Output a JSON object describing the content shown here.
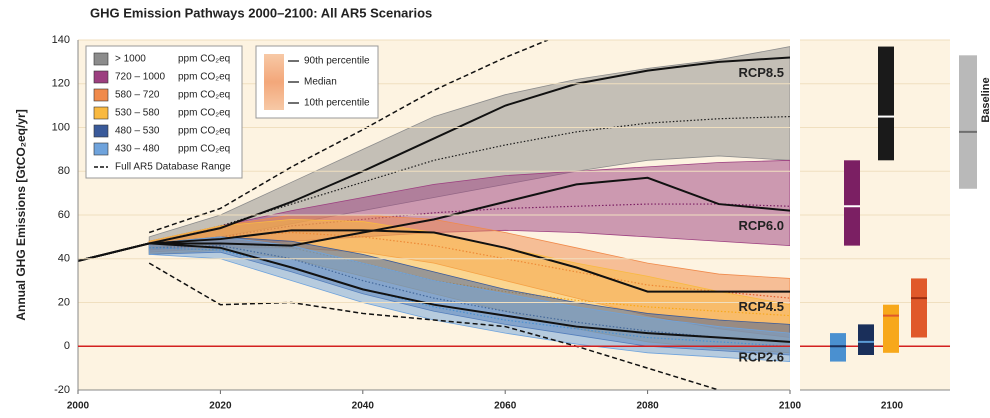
{
  "chart_data": {
    "type": "band",
    "title": "GHG Emission Pathways 2000–2100: All AR5 Scenarios",
    "y_label": "Annual GHG Emissions [GtCO₂eq/yr]",
    "xlim": [
      2000,
      2100
    ],
    "ylim": [
      -20,
      140
    ],
    "xticks": [
      2000,
      2020,
      2040,
      2060,
      2080,
      2100
    ],
    "yticks": [
      -20,
      0,
      20,
      40,
      60,
      80,
      100,
      120,
      140
    ],
    "grid": true,
    "x": [
      2010,
      2020,
      2030,
      2040,
      2050,
      2060,
      2070,
      2080,
      2090,
      2100
    ],
    "series": [
      {
        "name": "> 1000",
        "unit": "ppm CO₂eq",
        "color": "#8c8c8c",
        "box_color": "#1a1a1a",
        "box_median_color": "#ffffff",
        "upper": [
          50,
          60,
          75,
          90,
          105,
          115,
          122,
          127,
          131,
          137
        ],
        "values": [
          47,
          55,
          65,
          75,
          85,
          92,
          98,
          102,
          104,
          105
        ],
        "lower": [
          44,
          50,
          56,
          62,
          68,
          74,
          80,
          85,
          87,
          85
        ]
      },
      {
        "name": "720 – 1000",
        "unit": "ppm CO₂eq",
        "color": "#9c3f80",
        "box_color": "#7b1f63",
        "box_median_color": "#ffffff",
        "upper": [
          48,
          55,
          62,
          68,
          74,
          78,
          80,
          82,
          84,
          85
        ],
        "values": [
          46,
          50,
          55,
          58,
          61,
          63,
          64,
          65,
          65,
          64
        ],
        "lower": [
          44,
          46,
          48,
          50,
          52,
          53,
          52,
          50,
          48,
          46
        ]
      },
      {
        "name": "580 – 720",
        "unit": "ppm CO₂eq",
        "color": "#f08a4b",
        "box_color": "#e0592a",
        "box_median_color": "#9b2d10",
        "upper": [
          48,
          55,
          60,
          60,
          58,
          52,
          45,
          38,
          33,
          31
        ],
        "values": [
          46,
          50,
          52,
          50,
          46,
          40,
          34,
          28,
          25,
          22
        ],
        "lower": [
          43,
          45,
          45,
          43,
          38,
          30,
          22,
          14,
          8,
          4
        ]
      },
      {
        "name": "530 – 580",
        "unit": "ppm CO₂eq",
        "color": "#f9b940",
        "box_color": "#f7a81b",
        "box_median_color": "#e0592a",
        "upper": [
          48,
          55,
          58,
          57,
          52,
          45,
          38,
          32,
          25,
          19
        ],
        "values": [
          45,
          47,
          45,
          38,
          30,
          25,
          21,
          18,
          16,
          14
        ],
        "lower": [
          42,
          44,
          40,
          32,
          24,
          16,
          8,
          2,
          -1,
          -3
        ]
      },
      {
        "name": "480 – 530",
        "unit": "ppm CO₂eq",
        "color": "#3a5a9a",
        "box_color": "#1a2f5a",
        "box_median_color": "#5b9bd5",
        "upper": [
          47,
          50,
          48,
          42,
          34,
          26,
          20,
          15,
          12,
          10
        ],
        "values": [
          45,
          46,
          40,
          30,
          22,
          16,
          11,
          7,
          4,
          2
        ],
        "lower": [
          42,
          43,
          34,
          24,
          16,
          10,
          5,
          0,
          -2,
          -4
        ]
      },
      {
        "name": "430 – 480",
        "unit": "ppm CO₂eq",
        "color": "#6fa3dc",
        "box_color": "#4a90d0",
        "box_median_color": "#1a2f5a",
        "upper": [
          47,
          50,
          46,
          38,
          30,
          24,
          18,
          13,
          9,
          6
        ],
        "values": [
          45,
          44,
          36,
          26,
          18,
          12,
          8,
          4,
          2,
          0
        ],
        "lower": [
          42,
          40,
          30,
          20,
          12,
          6,
          1,
          -3,
          -5,
          -7
        ]
      }
    ],
    "database_range": {
      "name": "Full AR5 Database Range",
      "upper": {
        "x": [
          2010,
          2020,
          2030,
          2040,
          2050,
          2060,
          2066
        ],
        "values": [
          52,
          63,
          82,
          99,
          117,
          132,
          140
        ]
      },
      "lower": {
        "x": [
          2010,
          2020,
          2030,
          2040,
          2050,
          2060,
          2070,
          2080,
          2090
        ],
        "values": [
          38,
          19,
          20,
          15,
          12,
          9,
          0,
          -10,
          -20
        ]
      }
    },
    "percentile_legend": [
      "90th percentile",
      "Median",
      "10th percentile"
    ],
    "rcp_x": [
      2000,
      2010,
      2020,
      2030,
      2040,
      2050,
      2060,
      2070,
      2080,
      2090,
      2100
    ],
    "rcp": [
      {
        "name": "RCP8.5",
        "values": [
          39,
          47,
          54,
          66,
          80,
          95,
          110,
          120,
          126,
          130,
          132
        ]
      },
      {
        "name": "RCP6.0",
        "values": [
          39,
          47,
          47,
          46,
          52,
          58,
          66,
          74,
          77,
          65,
          62
        ]
      },
      {
        "name": "RCP4.5",
        "values": [
          39,
          47,
          49,
          53,
          53,
          52,
          45,
          36,
          25,
          25,
          25
        ]
      },
      {
        "name": "RCP2.6",
        "values": [
          39,
          47,
          45,
          36,
          26,
          19,
          14,
          9,
          6,
          4,
          2
        ]
      }
    ],
    "panel_xtick": 2100,
    "baseline": {
      "name": "Baseline",
      "color": "#b9b9b9",
      "median_color": "#6e6e6e",
      "low": 72,
      "median": 98,
      "high": 133
    }
  }
}
